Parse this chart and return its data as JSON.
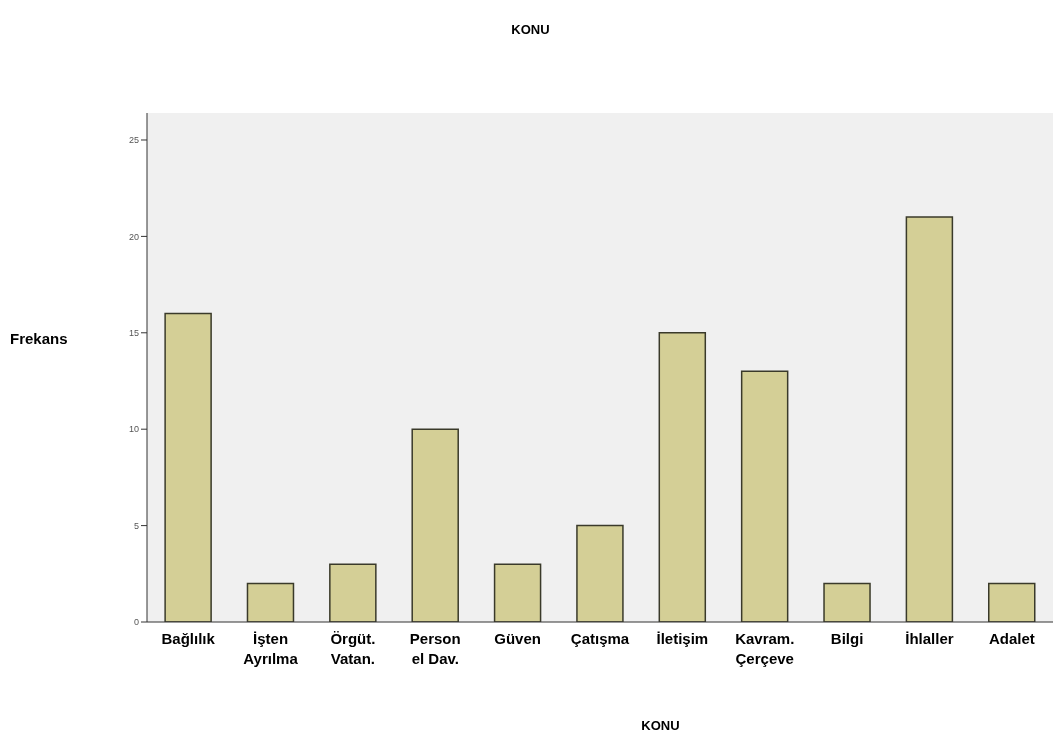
{
  "chart_data": {
    "type": "bar",
    "title": "KONU",
    "xlabel": "KONU",
    "ylabel": "Frekans",
    "categories": [
      "Bağlılık",
      "İşten\nAyrılma",
      "Örgüt.\nVatan.",
      "Person\nel Dav.",
      "Güven",
      "Çatışma",
      "İletişim",
      "Kavram.\nÇerçeve",
      "Bilgi",
      "İhlaller",
      "Adalet"
    ],
    "values": [
      16,
      2,
      3,
      10,
      3,
      5,
      15,
      13,
      2,
      21,
      2
    ],
    "color": "#d4cf96",
    "ylim": [
      0,
      26.4
    ],
    "yticks": [
      0,
      5,
      10,
      15,
      20,
      25
    ]
  }
}
